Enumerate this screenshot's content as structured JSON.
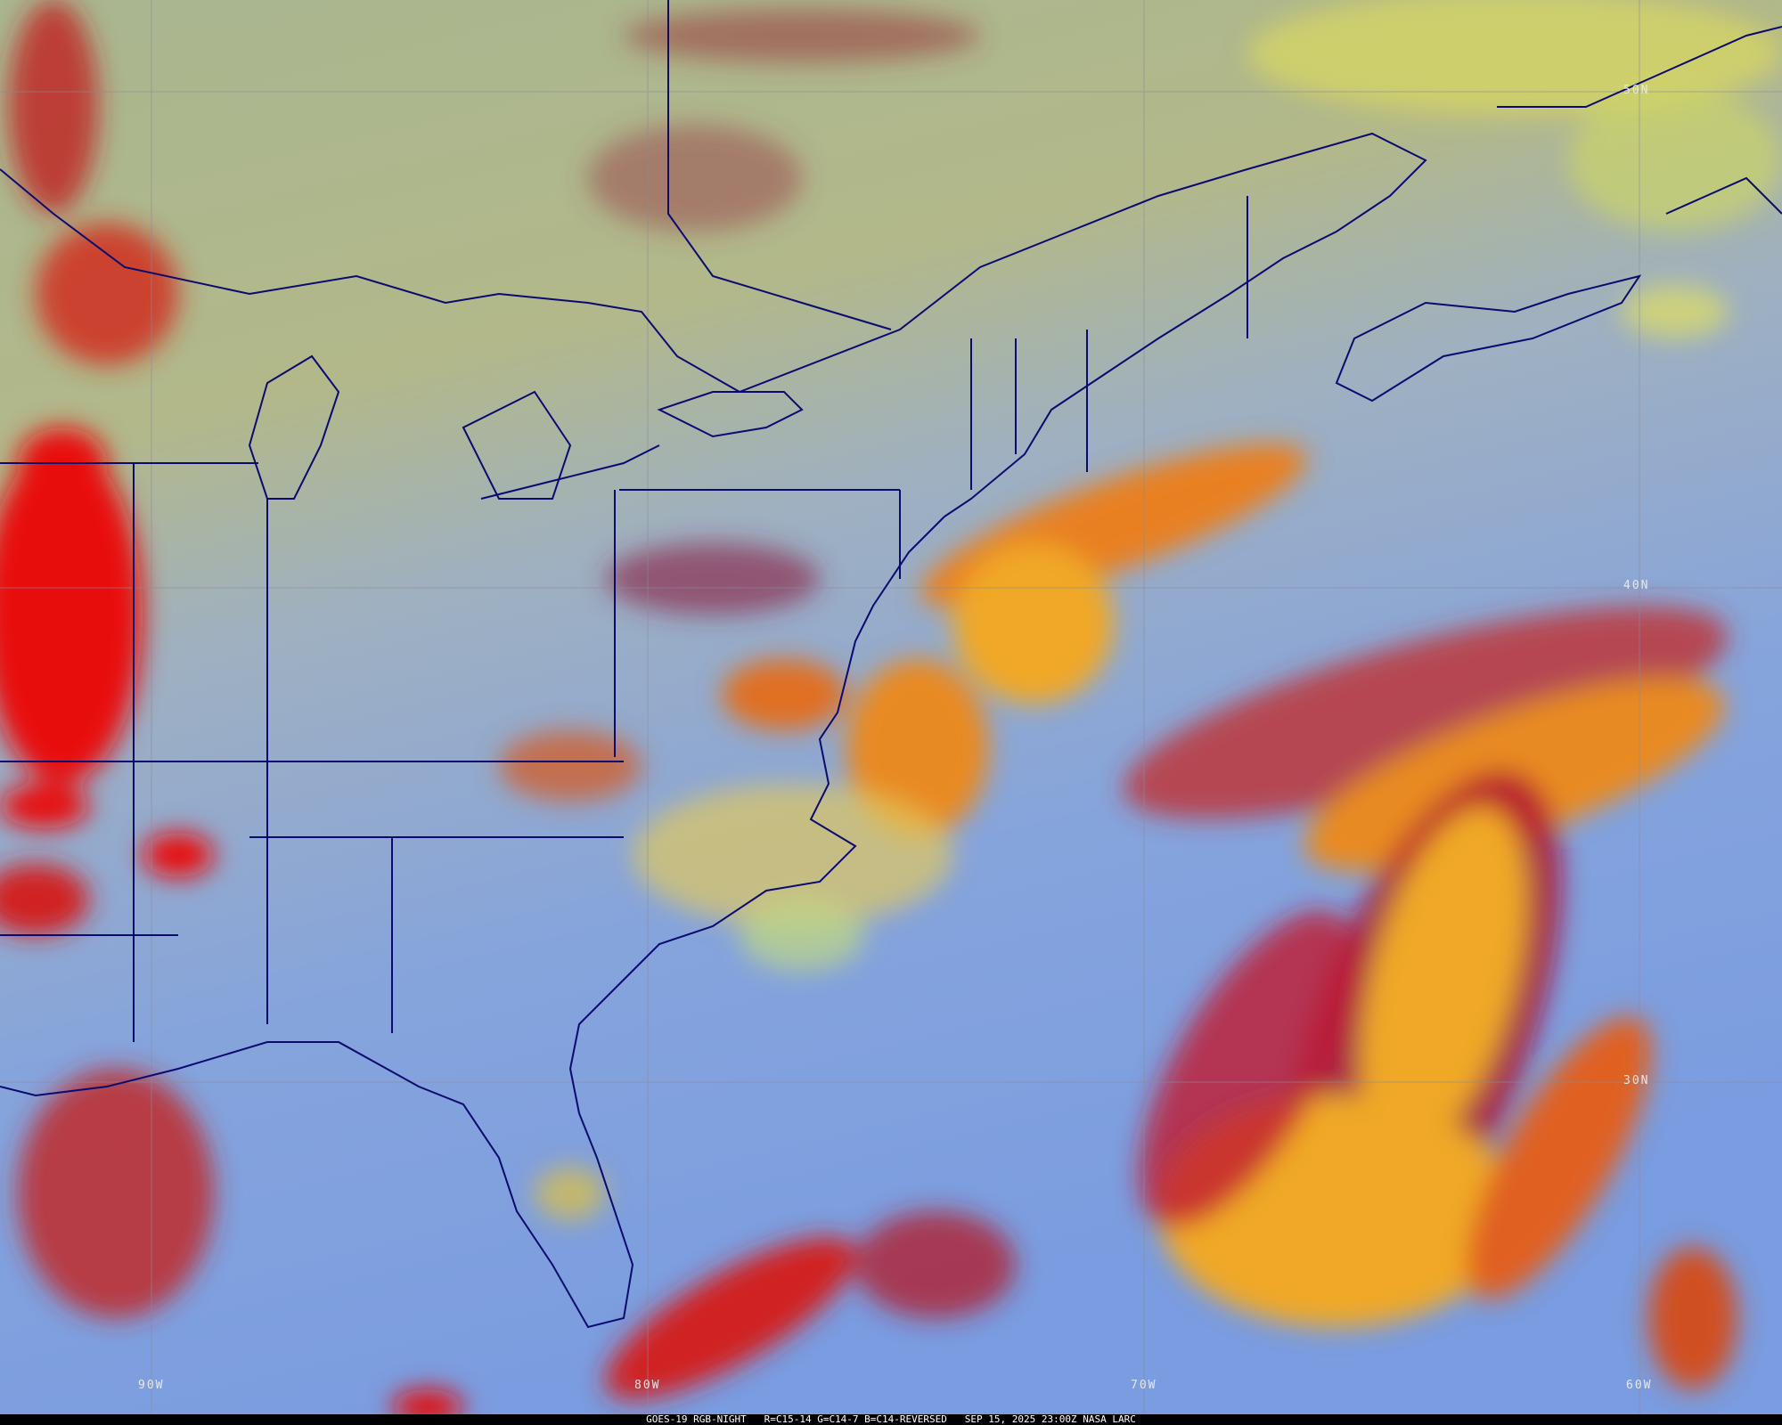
{
  "caption": {
    "satellite": "GOES-19",
    "product": "RGB-NIGHT",
    "channels": "R=C15-14 G=C14-7 B=C14-REVERSED",
    "datetime": "SEP 15, 2025 23:00Z",
    "source": "NASA LARC"
  },
  "latitude_labels": [
    "50N",
    "40N",
    "30N"
  ],
  "longitude_labels": [
    "90W",
    "80W",
    "70W",
    "60W"
  ],
  "colors": {
    "boundary_lines": "#0a0a70",
    "grid_lines": "#8a8a9a",
    "clear_land": "#a8b880",
    "clear_ocean": "#7aa0e0",
    "high_cloud": "#d01010",
    "mid_cloud": "#f0a020"
  }
}
